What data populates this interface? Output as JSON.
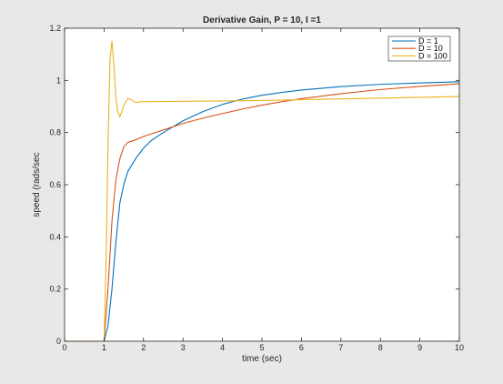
{
  "chart_data": {
    "type": "line",
    "title": "Derivative Gain, P = 10, I =1",
    "xlabel": "time (sec)",
    "ylabel": "speed (rads/sec",
    "xlim": [
      0,
      10
    ],
    "ylim": [
      0,
      1.2
    ],
    "xticks": [
      "0",
      "1",
      "2",
      "3",
      "4",
      "5",
      "6",
      "7",
      "8",
      "9",
      "10"
    ],
    "yticks": [
      "0",
      "0.2",
      "0.4",
      "0.6",
      "0.8",
      "1",
      "1.2"
    ],
    "grid": false,
    "legend_position": "top-right",
    "series": [
      {
        "name": "D = 1",
        "color": "#0072bd",
        "x": [
          0,
          1.0,
          1.1,
          1.2,
          1.3,
          1.4,
          1.5,
          1.6,
          1.8,
          2.0,
          2.2,
          2.5,
          3.0,
          3.5,
          4.0,
          4.5,
          5.0,
          5.5,
          6.0,
          7.0,
          8.0,
          9.0,
          10.0
        ],
        "y": [
          0,
          0,
          0.06,
          0.2,
          0.38,
          0.53,
          0.6,
          0.65,
          0.7,
          0.74,
          0.77,
          0.8,
          0.845,
          0.88,
          0.908,
          0.928,
          0.943,
          0.954,
          0.963,
          0.976,
          0.985,
          0.99,
          0.995
        ]
      },
      {
        "name": "D = 10",
        "color": "#d95319",
        "x": [
          0,
          1.0,
          1.1,
          1.2,
          1.3,
          1.4,
          1.5,
          1.6,
          1.8,
          2.0,
          2.5,
          3.0,
          3.5,
          4.0,
          4.5,
          5.0,
          5.5,
          6.0,
          7.0,
          8.0,
          9.0,
          10.0
        ],
        "y": [
          0,
          0,
          0.2,
          0.46,
          0.62,
          0.7,
          0.745,
          0.762,
          0.772,
          0.785,
          0.81,
          0.835,
          0.855,
          0.873,
          0.89,
          0.905,
          0.918,
          0.93,
          0.949,
          0.965,
          0.977,
          0.987
        ]
      },
      {
        "name": "D = 100",
        "color": "#edb120",
        "x": [
          0,
          1.0,
          1.05,
          1.1,
          1.15,
          1.2,
          1.25,
          1.3,
          1.35,
          1.4,
          1.45,
          1.5,
          1.6,
          1.7,
          1.8,
          1.9,
          2.0,
          2.5,
          3.0,
          4.0,
          5.0,
          6.0,
          7.0,
          8.0,
          9.0,
          10.0
        ],
        "y": [
          0,
          0,
          0.3,
          0.75,
          1.08,
          1.15,
          1.06,
          0.93,
          0.88,
          0.86,
          0.88,
          0.905,
          0.93,
          0.925,
          0.915,
          0.918,
          0.918,
          0.919,
          0.92,
          0.921,
          0.923,
          0.926,
          0.929,
          0.932,
          0.935,
          0.938
        ]
      }
    ]
  }
}
